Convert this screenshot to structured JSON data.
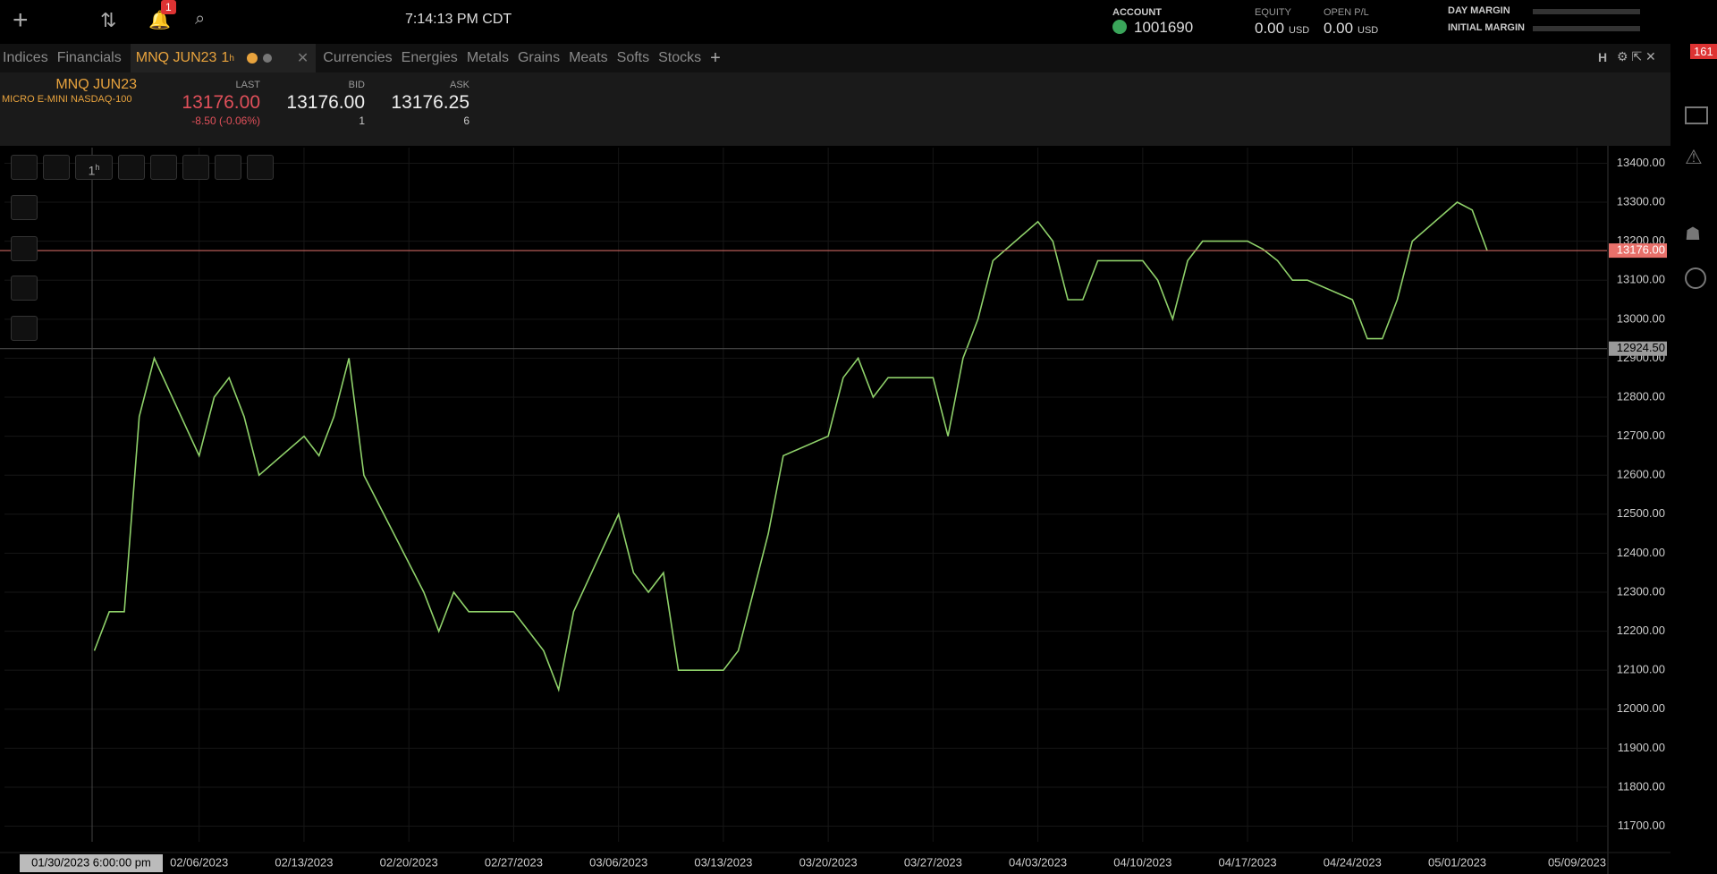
{
  "header": {
    "time": "7:14:13 PM CDT",
    "notifications": "1",
    "account_label": "ACCOUNT",
    "account": "1001690",
    "equity_label": "EQUITY",
    "equity": "0.00",
    "equity_unit": "USD",
    "open_pl_label": "OPEN P/L",
    "open_pl": "0.00",
    "open_pl_unit": "USD",
    "day_margin_label": "DAY MARGIN",
    "initial_margin_label": "INITIAL MARGIN",
    "badge": "161"
  },
  "tabs_before": [
    "Indices",
    "Financials"
  ],
  "active_tab": {
    "symbol": "MNQ JUN23",
    "interval": "1",
    "unit": "h"
  },
  "tabs_after": [
    "Currencies",
    "Energies",
    "Metals",
    "Grains",
    "Meats",
    "Softs",
    "Stocks"
  ],
  "panel_button": "H",
  "quote": {
    "symbol": "MNQ JUN23",
    "description": "MICRO E-MINI NASDAQ-100",
    "last_label": "LAST",
    "last": "13176.00",
    "change": "-8.50 (-0.06%)",
    "bid_label": "BID",
    "bid": "13176.00",
    "bid_size": "1",
    "ask_label": "ASK",
    "ask": "13176.25",
    "ask_size": "6"
  },
  "toolbar": {
    "interval": "1",
    "unit": "h"
  },
  "chart_data": {
    "type": "line",
    "color": "#8fd16a",
    "x": [
      "01/30/2023",
      "01/31/2023",
      "02/01/2023",
      "02/02/2023",
      "02/03/2023",
      "02/06/2023",
      "02/07/2023",
      "02/08/2023",
      "02/09/2023",
      "02/10/2023",
      "02/13/2023",
      "02/14/2023",
      "02/15/2023",
      "02/16/2023",
      "02/17/2023",
      "02/21/2023",
      "02/22/2023",
      "02/23/2023",
      "02/24/2023",
      "02/27/2023",
      "02/28/2023",
      "03/01/2023",
      "03/02/2023",
      "03/03/2023",
      "03/06/2023",
      "03/07/2023",
      "03/08/2023",
      "03/09/2023",
      "03/10/2023",
      "03/13/2023",
      "03/14/2023",
      "03/15/2023",
      "03/16/2023",
      "03/17/2023",
      "03/20/2023",
      "03/21/2023",
      "03/22/2023",
      "03/23/2023",
      "03/24/2023",
      "03/27/2023",
      "03/28/2023",
      "03/29/2023",
      "03/30/2023",
      "03/31/2023",
      "04/03/2023",
      "04/04/2023",
      "04/05/2023",
      "04/06/2023",
      "04/07/2023",
      "04/10/2023",
      "04/11/2023",
      "04/12/2023",
      "04/13/2023",
      "04/14/2023",
      "04/17/2023",
      "04/18/2023",
      "04/19/2023",
      "04/20/2023",
      "04/21/2023",
      "04/24/2023",
      "04/25/2023",
      "04/26/2023",
      "04/27/2023",
      "04/28/2023",
      "05/01/2023",
      "05/02/2023",
      "05/03/2023"
    ],
    "values": [
      12150,
      12250,
      12250,
      12750,
      12900,
      12650,
      12800,
      12850,
      12750,
      12600,
      12700,
      12650,
      12750,
      12900,
      12600,
      12300,
      12200,
      12300,
      12250,
      12250,
      12200,
      12150,
      12050,
      12250,
      12500,
      12350,
      12300,
      12350,
      12100,
      12100,
      12150,
      12300,
      12450,
      12650,
      12700,
      12850,
      12900,
      12800,
      12850,
      12850,
      12700,
      12900,
      13000,
      13150,
      13250,
      13200,
      13050,
      13050,
      13150,
      13150,
      13100,
      13000,
      13150,
      13200,
      13200,
      13180,
      13150,
      13100,
      13100,
      13050,
      12950,
      12950,
      13050,
      13200,
      13300,
      13280,
      13176
    ],
    "xlim": [
      "01/24/2023",
      "05/11/2023"
    ],
    "xticks": [
      "02/06/2023",
      "02/13/2023",
      "02/20/2023",
      "02/27/2023",
      "03/06/2023",
      "03/13/2023",
      "03/20/2023",
      "03/27/2023",
      "04/03/2023",
      "04/10/2023",
      "04/17/2023",
      "04/24/2023",
      "05/01/2023",
      "05/09/2023"
    ],
    "ylim": [
      11660,
      13440
    ],
    "yticks": [
      {
        "value": 11700,
        "label": "11700.00"
      },
      {
        "value": 11800,
        "label": "11800.00"
      },
      {
        "value": 11900,
        "label": "11900.00"
      },
      {
        "value": 12000,
        "label": "12000.00"
      },
      {
        "value": 12100,
        "label": "12100.00"
      },
      {
        "value": 12200,
        "label": "12200.00"
      },
      {
        "value": 12300,
        "label": "12300.00"
      },
      {
        "value": 12400,
        "label": "12400.00"
      },
      {
        "value": 12500,
        "label": "12500.00"
      },
      {
        "value": 12600,
        "label": "12600.00"
      },
      {
        "value": 12700,
        "label": "12700.00"
      },
      {
        "value": 12800,
        "label": "12800.00"
      },
      {
        "value": 12900,
        "label": "12900.00"
      },
      {
        "value": 13000,
        "label": "13000.00"
      },
      {
        "value": 13100,
        "label": "13100.00"
      },
      {
        "value": 13200,
        "label": "13200.00"
      },
      {
        "value": 13300,
        "label": "13300.00"
      },
      {
        "value": 13400,
        "label": "13400.00"
      }
    ],
    "grid": true,
    "last_price": {
      "value": 13176,
      "label": "13176.00"
    },
    "crosshair_price": {
      "value": 12924.5,
      "label": "12924.50"
    },
    "crosshair_label": "01/30/2023 6:00:00 pm"
  }
}
